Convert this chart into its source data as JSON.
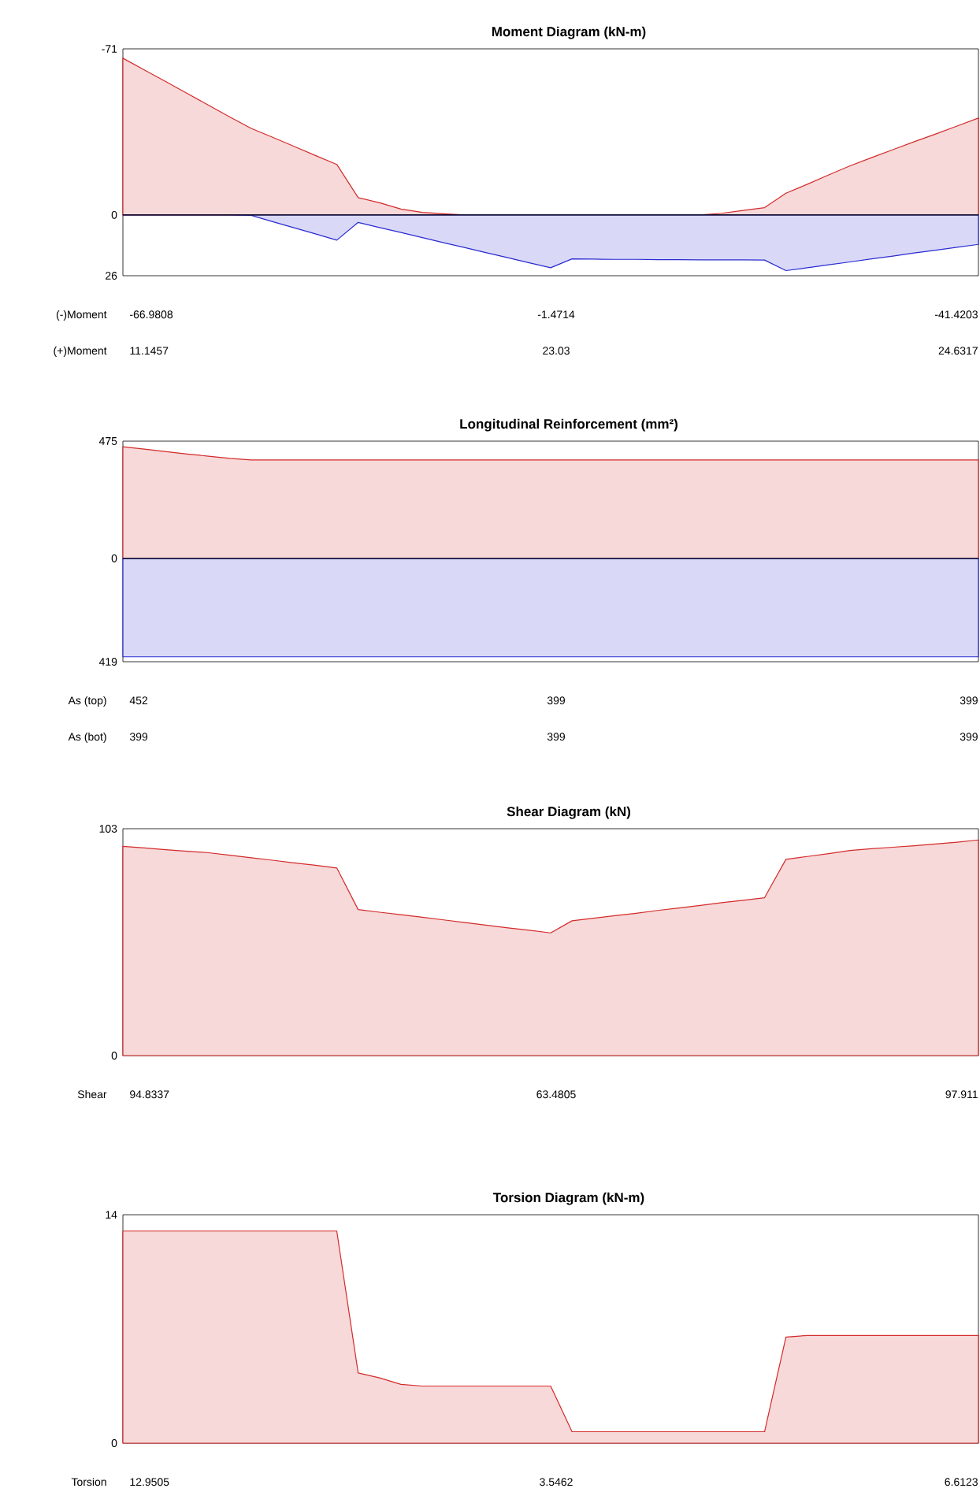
{
  "chart_data": [
    {
      "type": "area",
      "title": "Moment Diagram (kN-m)",
      "ylim": [
        26,
        -71
      ],
      "yticks": [
        -71,
        0,
        26
      ],
      "tick_labels": "y",
      "categories": [
        null,
        null,
        null,
        null,
        null,
        null,
        null,
        null,
        null,
        null,
        null,
        null,
        null,
        null,
        null,
        null,
        null,
        null,
        null,
        null,
        null,
        null,
        null,
        null,
        null,
        null,
        null,
        null,
        null,
        null,
        null,
        null,
        null,
        null,
        null,
        null,
        null,
        null,
        null,
        null,
        null
      ],
      "ref_lines": [
        {
          "axis": "y",
          "value": 0,
          "color": "#000000"
        }
      ],
      "series": [
        {
          "color": "#d42a2a",
          "values": [
            -67.0,
            -62.0,
            -57.0,
            -52.0,
            -46.9,
            -41.9,
            -37.0,
            -33.2,
            -29.3,
            -25.4,
            -21.6,
            -7.4,
            -5.2,
            -2.5,
            -1.1,
            -0.5,
            0,
            0,
            0,
            0,
            0,
            0,
            0,
            0,
            0,
            0,
            0,
            0,
            -0.7,
            -1.9,
            -3.1,
            -9.3,
            -13.1,
            -17.1,
            -21.0,
            -24.5,
            -27.9,
            -31.3,
            -34.6,
            -38.0,
            -41.4
          ]
        },
        {
          "color": "#2a2ad4",
          "values": [
            0,
            0,
            0,
            0,
            0,
            0,
            0.2,
            2.9,
            5.5,
            8.1,
            10.8,
            3.2,
            5.4,
            7.5,
            9.7,
            11.9,
            14.0,
            16.2,
            18.3,
            20.5,
            22.6,
            18.8,
            18.9,
            19.0,
            19.0,
            19.1,
            19.1,
            19.2,
            19.2,
            19.2,
            19.3,
            23.8,
            22.6,
            21.3,
            20.1,
            18.8,
            17.6,
            16.3,
            15.1,
            13.8,
            12.6
          ]
        }
      ],
      "annotations": [
        "(-)Moment",
        "-66.9808",
        "-1.4714",
        "-41.4203",
        "(+)Moment",
        "11.1457",
        "23.03",
        "24.6317"
      ]
    },
    {
      "type": "area",
      "title": "Longitudinal Reinforcement (mm²)",
      "ylim": [
        -419,
        475
      ],
      "yticks": [
        {
          "value": -419,
          "label": "419"
        },
        0,
        475
      ],
      "tick_labels": "y",
      "categories": [
        null,
        null,
        null,
        null,
        null,
        null,
        null,
        null,
        null,
        null,
        null,
        null,
        null,
        null,
        null,
        null,
        null,
        null,
        null,
        null,
        null,
        null,
        null,
        null,
        null,
        null,
        null,
        null,
        null,
        null,
        null,
        null,
        null,
        null,
        null,
        null,
        null,
        null,
        null,
        null,
        null
      ],
      "ref_lines": [
        {
          "axis": "y",
          "value": 0,
          "color": "#000000"
        }
      ],
      "series": [
        {
          "color": "#d42a2a",
          "values": [
            452,
            443,
            433,
            423,
            414,
            405,
            399,
            399,
            399,
            399,
            399,
            399,
            399,
            399,
            399,
            399,
            399,
            399,
            399,
            399,
            399,
            399,
            399,
            399,
            399,
            399,
            399,
            399,
            399,
            399,
            399,
            399,
            399,
            399,
            399,
            399,
            399,
            399,
            399,
            399,
            399
          ]
        },
        {
          "color": "#2a2ad4",
          "values": [
            -399,
            -399,
            -399,
            -399,
            -399,
            -399,
            -399,
            -399,
            -399,
            -399,
            -399,
            -399,
            -399,
            -399,
            -399,
            -399,
            -399,
            -399,
            -399,
            -399,
            -399,
            -399,
            -399,
            -399,
            -399,
            -399,
            -399,
            -399,
            -399,
            -399,
            -399,
            -399,
            -399,
            -399,
            -399,
            -399,
            -399,
            -399,
            -399,
            -399,
            -399
          ]
        }
      ],
      "annotations": [
        "As (top)",
        "452",
        "399",
        "399",
        "As (bot)",
        "399",
        "399",
        "399"
      ]
    },
    {
      "type": "area",
      "title": "Shear Diagram (kN)",
      "ylim": [
        0,
        103
      ],
      "yticks": [
        0,
        103
      ],
      "tick_labels": "y",
      "categories": [
        null,
        null,
        null,
        null,
        null,
        null,
        null,
        null,
        null,
        null,
        null,
        null,
        null,
        null,
        null,
        null,
        null,
        null,
        null,
        null,
        null,
        null,
        null,
        null,
        null,
        null,
        null,
        null,
        null,
        null,
        null,
        null,
        null,
        null,
        null,
        null,
        null,
        null,
        null,
        null,
        null
      ],
      "series": [
        {
          "color": "#d42a2a",
          "values": [
            95.0,
            94.3,
            93.5,
            92.8,
            92.1,
            91.0,
            89.8,
            88.7,
            87.5,
            86.4,
            85.2,
            66.3,
            65.1,
            64.0,
            62.8,
            61.6,
            60.4,
            59.2,
            58.0,
            56.9,
            55.7,
            61.2,
            62.4,
            63.5,
            64.6,
            65.9,
            67.0,
            68.2,
            69.4,
            70.5,
            71.7,
            89.1,
            90.4,
            91.7,
            93.1,
            93.9,
            94.6,
            95.3,
            96.1,
            96.9,
            97.9
          ]
        }
      ],
      "annotations": [
        "Shear",
        "94.8337",
        "63.4805",
        "97.911"
      ]
    },
    {
      "type": "area",
      "title": "Torsion Diagram (kN-m)",
      "ylim": [
        0,
        14
      ],
      "yticks": [
        0,
        14
      ],
      "tick_labels": "y",
      "categories": [
        null,
        null,
        null,
        null,
        null,
        null,
        null,
        null,
        null,
        null,
        null,
        null,
        null,
        null,
        null,
        null,
        null,
        null,
        null,
        null,
        null,
        null,
        null,
        null,
        null,
        null,
        null,
        null,
        null,
        null,
        null,
        null,
        null,
        null,
        null,
        null,
        null,
        null,
        null,
        null,
        null
      ],
      "series": [
        {
          "color": "#d42a2a",
          "values": [
            13.0,
            13.0,
            13.0,
            13.0,
            13.0,
            13.0,
            13.0,
            13.0,
            13.0,
            13.0,
            13.0,
            4.3,
            4.0,
            3.6,
            3.5,
            3.5,
            3.5,
            3.5,
            3.5,
            3.5,
            3.5,
            0.7,
            0.7,
            0.7,
            0.7,
            0.7,
            0.7,
            0.7,
            0.7,
            0.7,
            0.7,
            6.5,
            6.6,
            6.6,
            6.6,
            6.6,
            6.6,
            6.6,
            6.6,
            6.6,
            6.6
          ]
        }
      ],
      "annotations": [
        "Torsion",
        "12.9505",
        "3.5462",
        "6.6123"
      ]
    }
  ]
}
